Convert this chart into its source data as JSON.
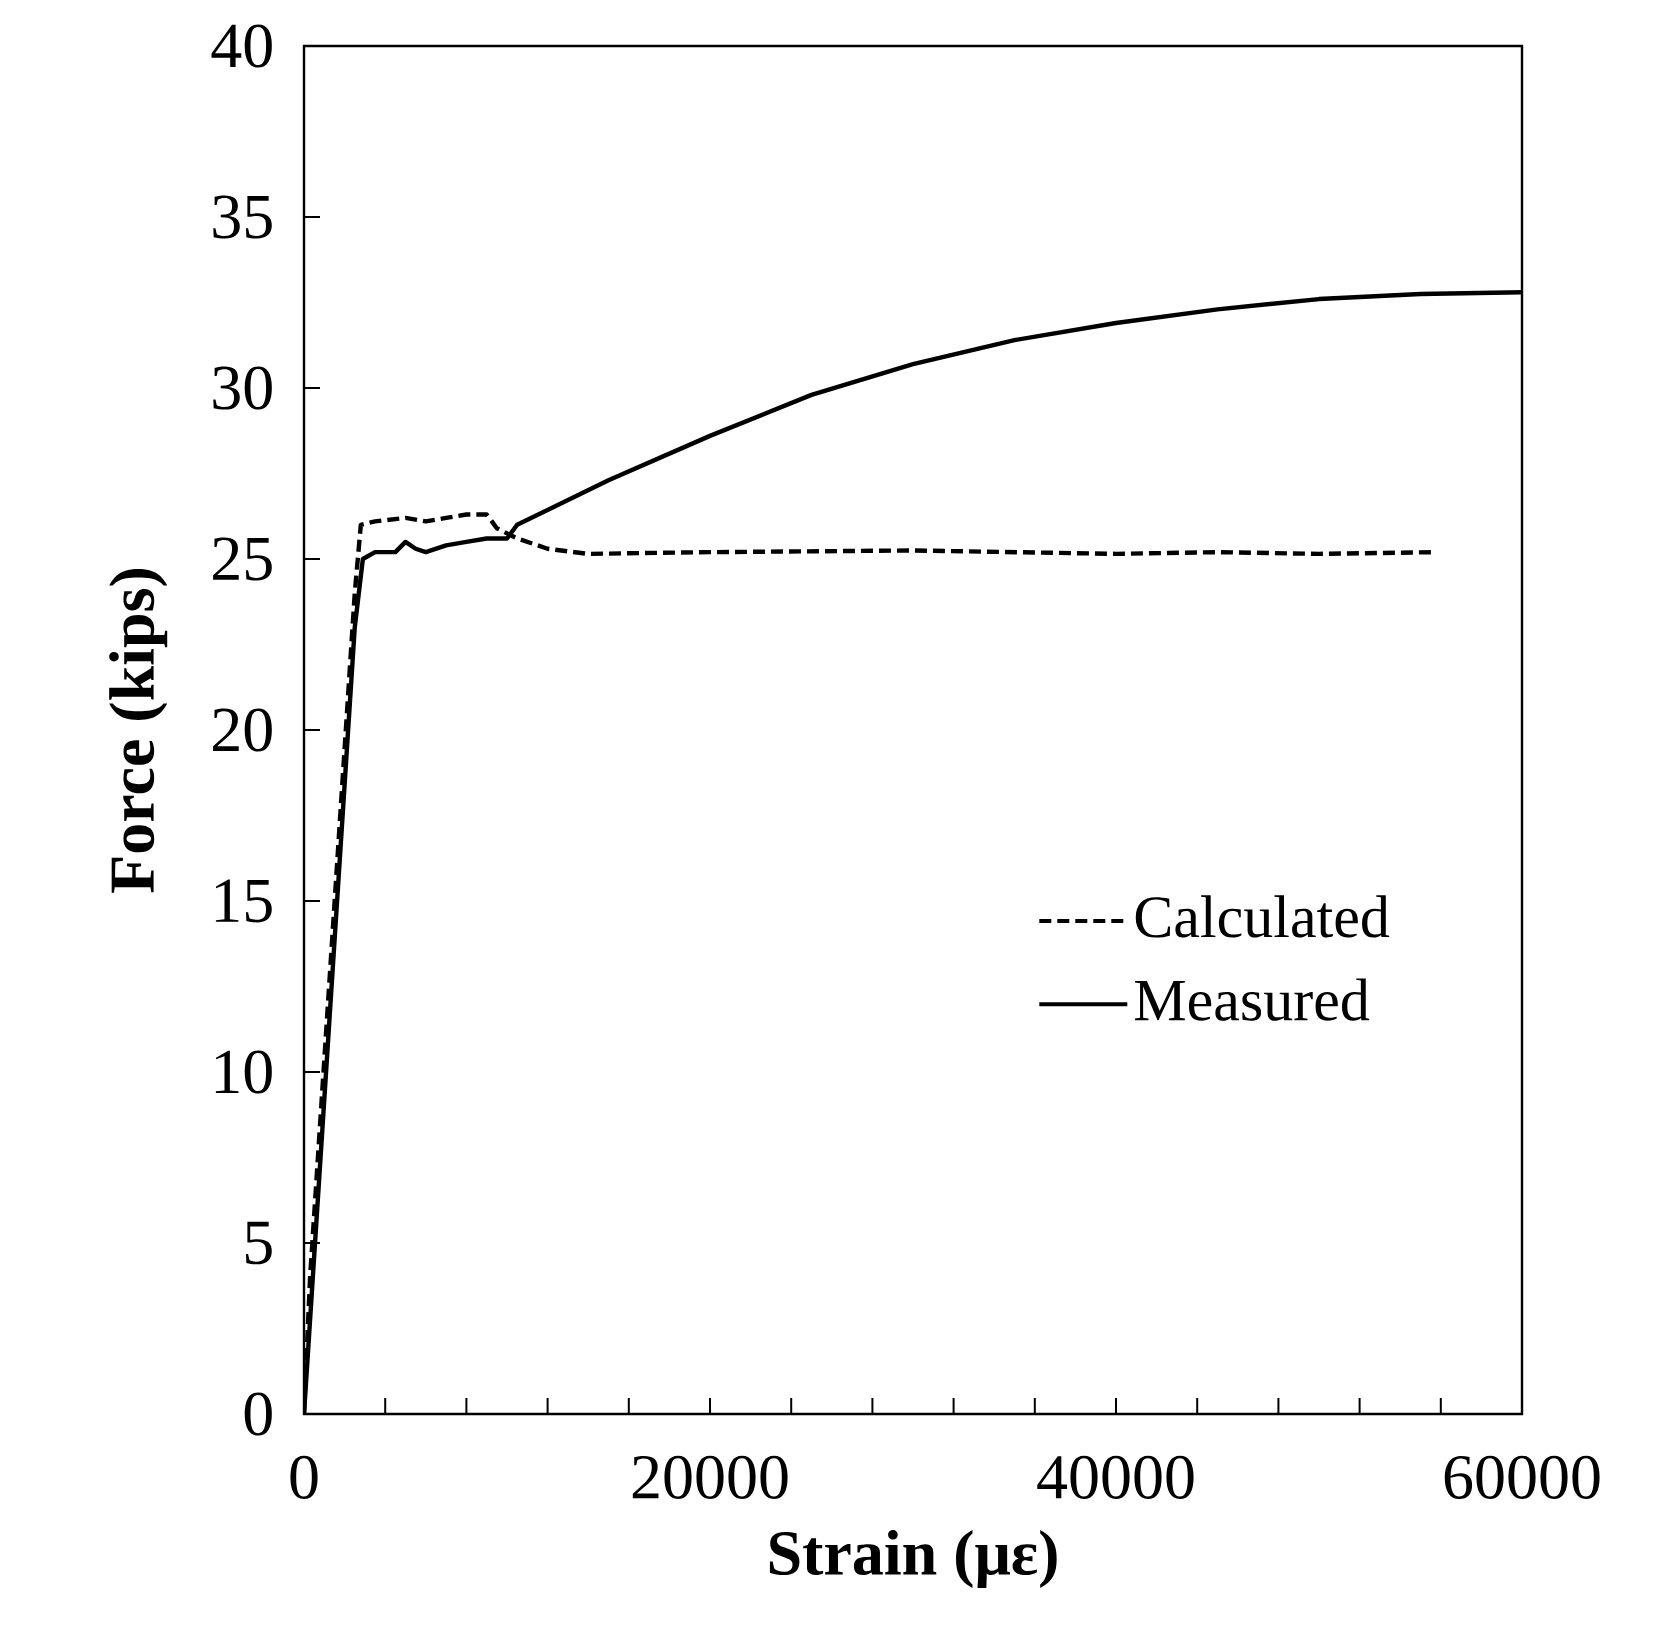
{
  "chart_data": {
    "type": "line",
    "xlabel": "Strain (με)",
    "ylabel": "Force (kips)",
    "xlim": [
      0,
      60000
    ],
    "ylim": [
      0,
      40
    ],
    "xticks": [
      0,
      {
        "value": 4000,
        "label": null
      },
      {
        "value": 8000,
        "label": null
      },
      {
        "value": 12000,
        "label": null
      },
      {
        "value": 16000,
        "label": null
      },
      20000,
      {
        "value": 24000,
        "label": null
      },
      {
        "value": 28000,
        "label": null
      },
      {
        "value": 32000,
        "label": null
      },
      {
        "value": 36000,
        "label": null
      },
      40000,
      {
        "value": 44000,
        "label": null
      },
      {
        "value": 48000,
        "label": null
      },
      {
        "value": 52000,
        "label": null
      },
      {
        "value": 56000,
        "label": null
      },
      60000
    ],
    "yticks": [
      0,
      5,
      10,
      15,
      20,
      25,
      30,
      35,
      40
    ],
    "grid": false,
    "legend": "right",
    "marker": "none",
    "series": [
      {
        "name": "Calculated",
        "color": "#000000",
        "line_style": "dashed",
        "x": [
          0,
          300,
          2500,
          2800,
          3500,
          5000,
          6000,
          7000,
          8000,
          9000,
          9500,
          10500,
          12000,
          14000,
          20000,
          30000,
          40000,
          45000,
          50000,
          55800
        ],
        "values": [
          0,
          4,
          24,
          26,
          26.1,
          26.2,
          26.1,
          26.2,
          26.3,
          26.3,
          25.9,
          25.6,
          25.3,
          25.15,
          25.2,
          25.25,
          25.15,
          25.2,
          25.15,
          25.2
        ]
      },
      {
        "name": "Measured",
        "color": "#000000",
        "line_style": "solid",
        "x": [
          0,
          2500,
          2900,
          3500,
          4500,
          5000,
          5500,
          6000,
          7000,
          8000,
          9000,
          10000,
          10500,
          15000,
          20000,
          25000,
          30000,
          35000,
          40000,
          45000,
          50000,
          55000,
          60000
        ],
        "values": [
          0,
          23,
          25,
          25.2,
          25.2,
          25.5,
          25.3,
          25.2,
          25.4,
          25.5,
          25.6,
          25.6,
          26,
          27.3,
          28.6,
          29.8,
          30.7,
          31.4,
          31.9,
          32.3,
          32.6,
          32.75,
          32.8
        ]
      }
    ]
  }
}
